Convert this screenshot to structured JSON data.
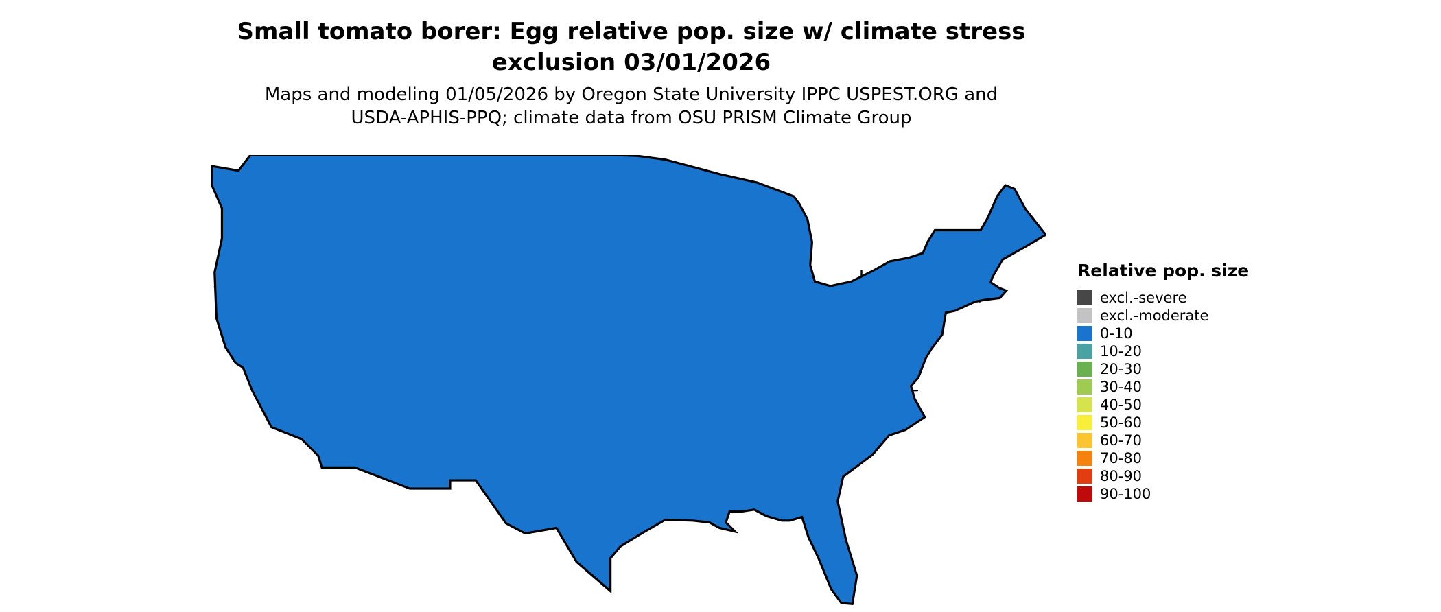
{
  "title": {
    "line1": "Small tomato borer: Egg relative pop. size w/ climate stress",
    "line2": "exclusion 03/01/2026"
  },
  "subtitle": {
    "line1": "Maps and modeling 01/05/2026 by Oregon State University IPPC USPEST.ORG and",
    "line2": "USDA-APHIS-PPQ; climate data from OSU PRISM Climate Group"
  },
  "legend": {
    "title": "Relative pop. size",
    "items": [
      {
        "label": "excl.-severe",
        "color": "#474747"
      },
      {
        "label": "excl.-moderate",
        "color": "#c3c3c3"
      },
      {
        "label": "0-10",
        "color": "#1874cd"
      },
      {
        "label": "10-20",
        "color": "#4aa3a2"
      },
      {
        "label": "20-30",
        "color": "#6ab150"
      },
      {
        "label": "30-40",
        "color": "#9fcc50"
      },
      {
        "label": "40-50",
        "color": "#d5e34d"
      },
      {
        "label": "50-60",
        "color": "#f8ef3a"
      },
      {
        "label": "60-70",
        "color": "#fdc431"
      },
      {
        "label": "70-80",
        "color": "#f5820c"
      },
      {
        "label": "80-90",
        "color": "#e23d0f"
      },
      {
        "label": "90-100",
        "color": "#bf0a0a"
      }
    ]
  }
}
